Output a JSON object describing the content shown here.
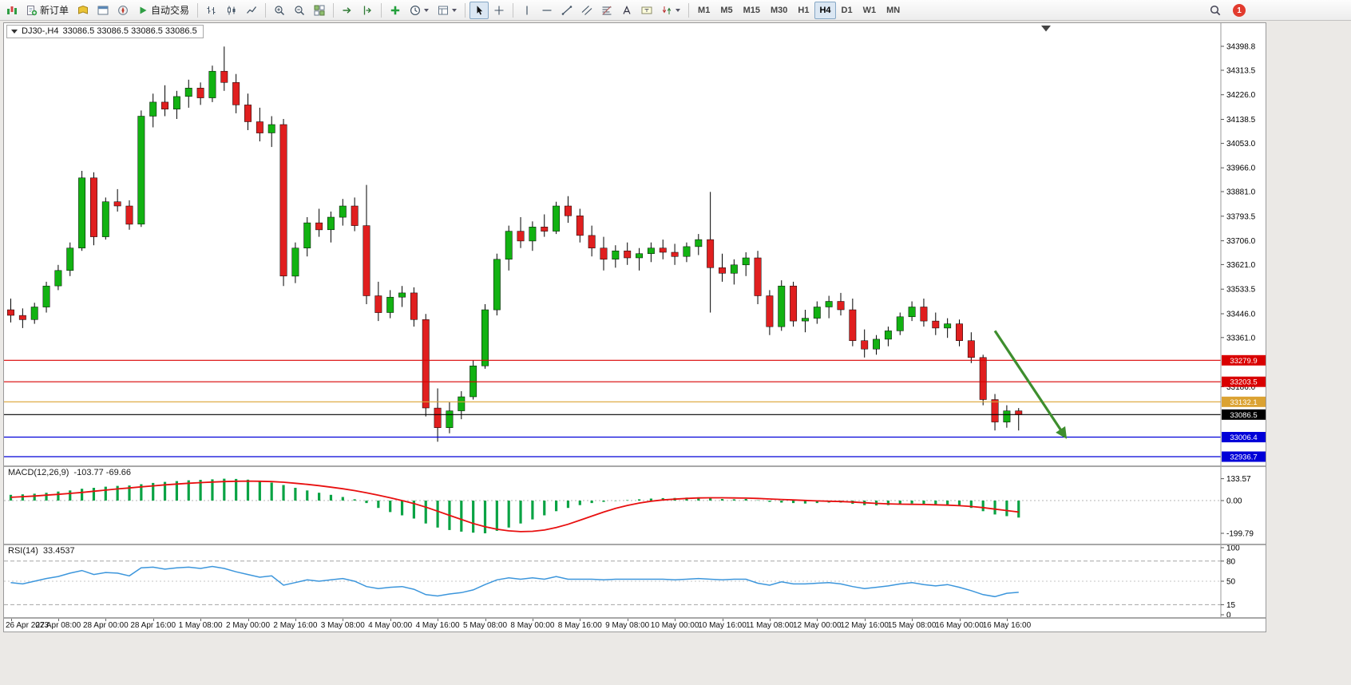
{
  "toolbar": {
    "groups": [
      {
        "items": [
          {
            "name": "new-chart"
          },
          {
            "name": "new-order",
            "label": "新订单"
          },
          {
            "name": "market-watch"
          },
          {
            "name": "data-window"
          },
          {
            "name": "navigator"
          },
          {
            "name": "auto-trading",
            "label": "自动交易"
          }
        ]
      },
      {
        "items": [
          {
            "name": "bar-chart"
          },
          {
            "name": "candlestick-chart"
          },
          {
            "name": "line-chart"
          }
        ]
      },
      {
        "items": [
          {
            "name": "zoom-in"
          },
          {
            "name": "zoom-out"
          },
          {
            "name": "tile-windows"
          }
        ]
      },
      {
        "items": [
          {
            "name": "auto-scroll"
          },
          {
            "name": "chart-shift"
          }
        ]
      },
      {
        "items": [
          {
            "name": "indicators"
          },
          {
            "name": "periods",
            "dropdown": true
          },
          {
            "name": "templates",
            "dropdown": true
          }
        ]
      },
      {
        "items": [
          {
            "name": "cursor",
            "pressed": true
          },
          {
            "name": "crosshair"
          }
        ]
      },
      {
        "items": [
          {
            "name": "vertical-line"
          },
          {
            "name": "horizontal-line"
          },
          {
            "name": "trendline"
          },
          {
            "name": "equidistant-channel"
          },
          {
            "name": "fibonacci"
          },
          {
            "name": "text"
          },
          {
            "name": "text-label"
          },
          {
            "name": "arrows",
            "dropdown": true
          }
        ]
      }
    ],
    "timeframes": [
      "M1",
      "M5",
      "M15",
      "M30",
      "H1",
      "H4",
      "D1",
      "W1",
      "MN"
    ],
    "active_timeframe": "H4",
    "notification_badge": "1"
  },
  "chart": {
    "tab": {
      "symbol_period": "DJ30-,H4",
      "ohlc": "33086.5 33086.5 33086.5 33086.5"
    },
    "price_axis_ticks": [
      "34398.8",
      "34313.5",
      "34226.0",
      "34138.5",
      "34053.0",
      "33966.0",
      "33881.0",
      "33793.5",
      "33706.0",
      "33621.0",
      "33533.5",
      "33446.0",
      "33361.0",
      "33186.0"
    ],
    "price_badges": [
      {
        "text": "33279.9",
        "value": 33279.9,
        "bg": "#d90000"
      },
      {
        "text": "33203.5",
        "value": 33203.5,
        "bg": "#d90000"
      },
      {
        "text": "33132.1",
        "value": 33132.1,
        "bg": "#dba232"
      },
      {
        "text": "33086.5",
        "value": 33086.5,
        "bg": "#000000"
      },
      {
        "text": "33006.4",
        "value": 33006.4,
        "bg": "#0000d8"
      },
      {
        "text": "32936.7",
        "value": 32936.7,
        "bg": "#0000d8"
      }
    ],
    "macd_label": "MACD(12,26,9)",
    "macd_values": "-103.77 -69.66",
    "macd_scale": [
      "133.57",
      "0.00",
      "-199.79"
    ],
    "rsi_label": "RSI(14)",
    "rsi_value": "33.4537",
    "rsi_scale": [
      "100",
      "80",
      "50",
      "15",
      "0"
    ]
  },
  "chart_data": {
    "type": "candlestick",
    "title": "DJ30-,H4",
    "symbol": "DJ30-",
    "timeframe": "H4",
    "current_ohlc": [
      33086.5,
      33086.5,
      33086.5,
      33086.5
    ],
    "y_range": [
      32890,
      34440
    ],
    "label_every_n_candles": 4,
    "x_labels": [
      "26 Apr 2023",
      "27 Apr 08:00",
      "28 Apr 00:00",
      "28 Apr 16:00",
      "1 May 08:00",
      "2 May 00:00",
      "2 May 16:00",
      "3 May 08:00",
      "4 May 00:00",
      "4 May 16:00",
      "5 May 08:00",
      "8 May 00:00",
      "8 May 16:00",
      "9 May 08:00",
      "10 May 00:00",
      "10 May 16:00",
      "11 May 08:00",
      "12 May 00:00",
      "12 May 16:00",
      "15 May 08:00",
      "16 May 00:00",
      "16 May 16:00"
    ],
    "candles_ohlc": [
      [
        33460,
        33500,
        33415,
        33440
      ],
      [
        33440,
        33465,
        33395,
        33425
      ],
      [
        33425,
        33485,
        33410,
        33470
      ],
      [
        33470,
        33560,
        33450,
        33545
      ],
      [
        33545,
        33620,
        33530,
        33600
      ],
      [
        33600,
        33700,
        33580,
        33680
      ],
      [
        33680,
        33955,
        33670,
        33930
      ],
      [
        33930,
        33950,
        33690,
        33720
      ],
      [
        33720,
        33860,
        33710,
        33845
      ],
      [
        33845,
        33890,
        33810,
        33830
      ],
      [
        33830,
        33850,
        33745,
        33765
      ],
      [
        33765,
        34170,
        33755,
        34150
      ],
      [
        34150,
        34230,
        34110,
        34200
      ],
      [
        34200,
        34260,
        34150,
        34175
      ],
      [
        34175,
        34240,
        34140,
        34220
      ],
      [
        34220,
        34280,
        34180,
        34250
      ],
      [
        34250,
        34270,
        34190,
        34215
      ],
      [
        34215,
        34330,
        34200,
        34310
      ],
      [
        34310,
        34398,
        34240,
        34270
      ],
      [
        34270,
        34300,
        34160,
        34190
      ],
      [
        34190,
        34230,
        34100,
        34130
      ],
      [
        34130,
        34180,
        34060,
        34090
      ],
      [
        34090,
        34150,
        34040,
        34120
      ],
      [
        34120,
        34140,
        33545,
        33580
      ],
      [
        33580,
        33700,
        33555,
        33680
      ],
      [
        33680,
        33790,
        33650,
        33770
      ],
      [
        33770,
        33820,
        33720,
        33745
      ],
      [
        33745,
        33810,
        33700,
        33790
      ],
      [
        33790,
        33855,
        33760,
        33830
      ],
      [
        33830,
        33860,
        33740,
        33760
      ],
      [
        33760,
        33905,
        33480,
        33510
      ],
      [
        33510,
        33560,
        33420,
        33450
      ],
      [
        33450,
        33530,
        33430,
        33505
      ],
      [
        33505,
        33545,
        33470,
        33520
      ],
      [
        33520,
        33540,
        33400,
        33425
      ],
      [
        33425,
        33445,
        33080,
        33110
      ],
      [
        33110,
        33180,
        32990,
        33040
      ],
      [
        33040,
        33130,
        33020,
        33100
      ],
      [
        33100,
        33170,
        33070,
        33150
      ],
      [
        33150,
        33280,
        33140,
        33260
      ],
      [
        33260,
        33480,
        33250,
        33460
      ],
      [
        33460,
        33660,
        33440,
        33640
      ],
      [
        33640,
        33760,
        33600,
        33740
      ],
      [
        33740,
        33790,
        33680,
        33705
      ],
      [
        33705,
        33775,
        33670,
        33755
      ],
      [
        33755,
        33800,
        33720,
        33740
      ],
      [
        33740,
        33845,
        33730,
        33830
      ],
      [
        33830,
        33865,
        33770,
        33795
      ],
      [
        33795,
        33820,
        33700,
        33725
      ],
      [
        33725,
        33760,
        33650,
        33680
      ],
      [
        33680,
        33720,
        33600,
        33640
      ],
      [
        33640,
        33690,
        33610,
        33670
      ],
      [
        33670,
        33700,
        33620,
        33645
      ],
      [
        33645,
        33680,
        33600,
        33660
      ],
      [
        33660,
        33700,
        33630,
        33680
      ],
      [
        33680,
        33710,
        33640,
        33665
      ],
      [
        33665,
        33695,
        33620,
        33650
      ],
      [
        33650,
        33700,
        33630,
        33685
      ],
      [
        33685,
        33730,
        33655,
        33710
      ],
      [
        33710,
        33880,
        33450,
        33610
      ],
      [
        33610,
        33660,
        33560,
        33590
      ],
      [
        33590,
        33640,
        33550,
        33620
      ],
      [
        33620,
        33665,
        33580,
        33645
      ],
      [
        33645,
        33670,
        33480,
        33510
      ],
      [
        33510,
        33530,
        33370,
        33400
      ],
      [
        33400,
        33565,
        33385,
        33545
      ],
      [
        33545,
        33560,
        33400,
        33420
      ],
      [
        33420,
        33460,
        33380,
        33430
      ],
      [
        33430,
        33490,
        33410,
        33470
      ],
      [
        33470,
        33510,
        33430,
        33490
      ],
      [
        33490,
        33520,
        33440,
        33460
      ],
      [
        33460,
        33500,
        33330,
        33350
      ],
      [
        33350,
        33390,
        33290,
        33320
      ],
      [
        33320,
        33370,
        33300,
        33355
      ],
      [
        33355,
        33400,
        33330,
        33385
      ],
      [
        33385,
        33450,
        33370,
        33435
      ],
      [
        33435,
        33490,
        33420,
        33470
      ],
      [
        33470,
        33500,
        33400,
        33420
      ],
      [
        33420,
        33450,
        33370,
        33395
      ],
      [
        33395,
        33430,
        33360,
        33410
      ],
      [
        33410,
        33425,
        33330,
        33350
      ],
      [
        33350,
        33380,
        33270,
        33290
      ],
      [
        33290,
        33300,
        33120,
        33140
      ],
      [
        33140,
        33160,
        33030,
        33060
      ],
      [
        33060,
        33120,
        33040,
        33100
      ],
      [
        33100,
        33110,
        33030,
        33086.5
      ]
    ],
    "horizontal_levels": [
      {
        "value": 33279.9,
        "color": "#d90000"
      },
      {
        "value": 33203.5,
        "color": "#d90000"
      },
      {
        "value": 33132.1,
        "color": "#dba232"
      },
      {
        "value": 33086.5,
        "color": "#000000",
        "label": "current-price"
      },
      {
        "value": 33006.4,
        "color": "#0000d8"
      },
      {
        "value": 32936.7,
        "color": "#0000d8"
      }
    ],
    "annotations": [
      {
        "type": "arrow",
        "from_index": 83,
        "from_price": 33385,
        "to_index": 88.9,
        "to_price": 33010,
        "color": "#3e8e2e"
      }
    ],
    "indicators": [
      {
        "type": "macd",
        "label": "MACD(12,26,9)",
        "current_values": [
          -103.77,
          -69.66
        ],
        "scale_max": 133.57,
        "scale_min": -199.79,
        "histogram": [
          35,
          38,
          42,
          48,
          55,
          62,
          72,
          78,
          85,
          90,
          92,
          100,
          108,
          114,
          119,
          124,
          127,
          130,
          133.57,
          132,
          128,
          120,
          110,
          95,
          78,
          62,
          48,
          35,
          22,
          8,
          -15,
          -45,
          -70,
          -90,
          -110,
          -140,
          -165,
          -180,
          -190,
          -196,
          -199.79,
          -185,
          -165,
          -140,
          -115,
          -90,
          -65,
          -45,
          -28,
          -15,
          -8,
          -2,
          3,
          8,
          12,
          15,
          16,
          18,
          20,
          15,
          10,
          8,
          10,
          2,
          -8,
          -12,
          -15,
          -18,
          -15,
          -12,
          -12,
          -20,
          -28,
          -30,
          -28,
          -22,
          -18,
          -20,
          -25,
          -25,
          -32,
          -45,
          -65,
          -85,
          -95,
          -103.77
        ],
        "signal": [
          20,
          24,
          28,
          33,
          38,
          44,
          50,
          57,
          64,
          71,
          77,
          84,
          90,
          96,
          101,
          106,
          110,
          113,
          116,
          118,
          119,
          118,
          116,
          112,
          106,
          99,
          91,
          82,
          72,
          61,
          48,
          33,
          17,
          0,
          -18,
          -40,
          -65,
          -90,
          -115,
          -140,
          -160,
          -175,
          -185,
          -190,
          -188,
          -180,
          -165,
          -145,
          -120,
          -95,
          -70,
          -48,
          -30,
          -15,
          -4,
          4,
          9,
          13,
          16,
          17,
          17,
          16,
          15,
          13,
          10,
          7,
          4,
          1,
          -2,
          -4,
          -6,
          -9,
          -13,
          -17,
          -20,
          -22,
          -23,
          -24,
          -26,
          -28,
          -31,
          -36,
          -43,
          -52,
          -61,
          -69.66
        ]
      },
      {
        "type": "rsi",
        "label": "RSI(14)",
        "current_value": 33.4537,
        "levels": [
          80,
          50,
          15
        ],
        "values": [
          48,
          46,
          50,
          54,
          57,
          62,
          66,
          60,
          63,
          62,
          58,
          70,
          71,
          68,
          70,
          71,
          69,
          72,
          69,
          64,
          60,
          56,
          58,
          44,
          48,
          52,
          50,
          52,
          54,
          50,
          42,
          39,
          41,
          42,
          38,
          30,
          28,
          31,
          33,
          37,
          45,
          52,
          55,
          53,
          55,
          53,
          57,
          53,
          53,
          53,
          52,
          53,
          53,
          53,
          53,
          53,
          52,
          53,
          54,
          53,
          52,
          53,
          53,
          47,
          44,
          49,
          46,
          46,
          47,
          48,
          46,
          42,
          39,
          41,
          43,
          46,
          48,
          45,
          43,
          45,
          41,
          36,
          30,
          27,
          32,
          33.45
        ]
      }
    ],
    "colors": {
      "bull": "#12b212",
      "bear": "#e01f1f",
      "wick": "#000000",
      "macd_histogram": "#0aa344",
      "macd_signal": "#e81010",
      "rsi_line": "#3c96dc",
      "arrow": "#3e8e2e"
    }
  }
}
